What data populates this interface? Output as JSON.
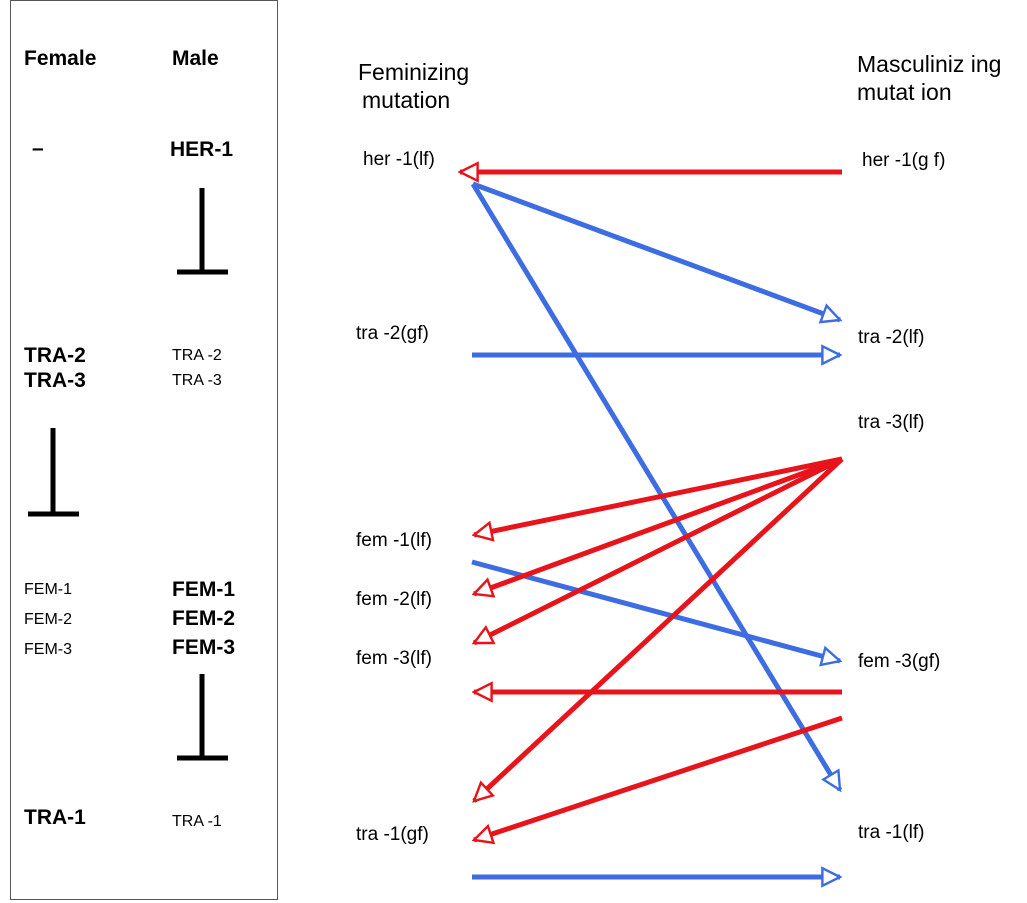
{
  "pathway": {
    "female_header": "Female",
    "male_header": "Male",
    "female_dash": "–",
    "male_her1": "HER-1",
    "female_tra2": "TRA-2",
    "female_tra3": "TRA-3",
    "male_tra2": "TRA -2",
    "male_tra3": "TRA -3",
    "female_fem1": "FEM-1",
    "female_fem2": "FEM-2",
    "female_fem3": "FEM-3",
    "male_fem1": "FEM-1",
    "male_fem2": "FEM-2",
    "male_fem3": "FEM-3",
    "female_tra1": "TRA-1",
    "male_tra1": "TRA -1"
  },
  "columns": {
    "feminizing_line1": "Feminizing",
    "feminizing_line2": "mutation",
    "masculinizing_line1": "Masculiniz ing",
    "masculinizing_line2": "mutat ion"
  },
  "feminizing_mutations": {
    "her1": "her -1(lf)",
    "tra2": "tra -2(gf)",
    "fem1": "fem -1(lf)",
    "fem2": "fem -2(lf)",
    "fem3": "fem -3(lf)",
    "tra1": "tra -1(gf)"
  },
  "masculinizing_mutations": {
    "her1": "her -1(g f)",
    "tra2": "tra -2(lf)",
    "tra3": "tra -3(lf)",
    "fem3": "fem -3(gf)",
    "tra1": "tra -1(lf)"
  },
  "colors": {
    "red_arrow": "#e8141b",
    "blue_arrow": "#3d6de0",
    "inhibition_bar": "#000000"
  }
}
